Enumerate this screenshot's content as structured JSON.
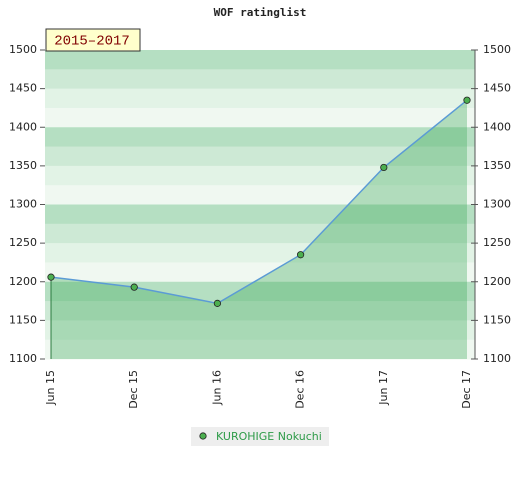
{
  "chart_data": {
    "type": "line",
    "title": "WOF ratinglist",
    "annotation": "2015–2017",
    "categories": [
      "Jun 15",
      "Dec 15",
      "Jun 16",
      "Dec 16",
      "Jun 17",
      "Dec 17"
    ],
    "series": [
      {
        "name": "KUROHIGE Nokuchi",
        "color": "#5b9bd5",
        "marker_color": "#4caf50",
        "values": [
          1206,
          1193,
          1172,
          1235,
          1348,
          1435
        ]
      }
    ],
    "ylim": [
      1100,
      1500
    ],
    "yticks": [
      1100,
      1150,
      1200,
      1250,
      1300,
      1350,
      1400,
      1450,
      1500
    ],
    "y2lim": [
      1100,
      1500
    ],
    "y2ticks": [
      1100,
      1150,
      1200,
      1250,
      1300,
      1350,
      1400,
      1450,
      1500
    ]
  }
}
